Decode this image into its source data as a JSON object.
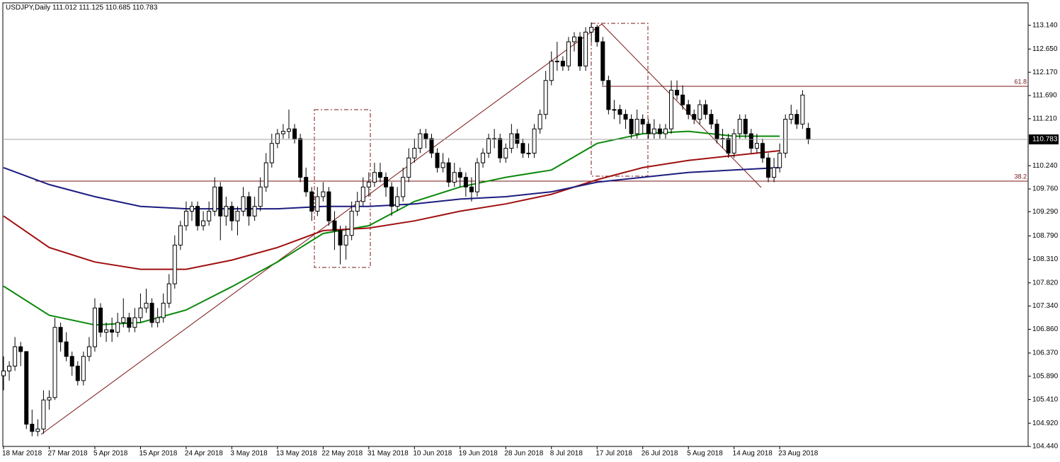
{
  "chart_data": {
    "type": "candlestick",
    "title": "USDJPY,Daily  111.012 111.125 110.685 110.783",
    "categories": [
      "18 Mar 2018",
      null,
      null,
      null,
      null,
      null,
      null,
      null,
      "27 Mar 2018",
      null,
      null,
      null,
      null,
      null,
      null,
      null,
      "5 Apr 2018",
      null,
      null,
      null,
      null,
      null,
      null,
      null,
      "15 Apr 2018",
      null,
      null,
      null,
      null,
      null,
      null,
      null,
      "24 Apr 2018",
      null,
      null,
      null,
      null,
      null,
      null,
      null,
      "3 May 2018",
      null,
      null,
      null,
      null,
      null,
      null,
      null,
      "13 May 2018",
      null,
      null,
      null,
      null,
      null,
      null,
      null,
      "22 May 2018",
      null,
      null,
      null,
      null,
      null,
      null,
      null,
      "31 May 2018",
      null,
      null,
      null,
      null,
      null,
      null,
      null,
      "10 Jun 2018",
      null,
      null,
      null,
      null,
      null,
      null,
      null,
      "19 Jun 2018",
      null,
      null,
      null,
      null,
      null,
      null,
      null,
      "28 Jun 2018",
      null,
      null,
      null,
      null,
      null,
      null,
      null,
      "8 Jul 2018",
      null,
      null,
      null,
      null,
      null,
      null,
      null,
      "17 Jul 2018",
      null,
      null,
      null,
      null,
      null,
      null,
      null,
      "26 Jul 2018",
      null,
      null,
      null,
      null,
      null,
      null,
      null,
      "5 Aug 2018",
      null,
      null,
      null,
      null,
      null,
      null,
      null,
      "14 Aug 2018",
      null,
      null,
      null,
      null,
      null,
      null,
      null,
      "23 Aug 2018",
      null,
      null,
      null,
      null,
      null
    ],
    "ohlc": [
      [
        105.9,
        106.3,
        105.6,
        106.0
      ],
      [
        106.0,
        106.2,
        105.8,
        106.1
      ],
      [
        106.1,
        106.7,
        106.0,
        106.5
      ],
      [
        106.5,
        106.6,
        106.1,
        106.4
      ],
      [
        106.4,
        106.4,
        104.8,
        104.9
      ],
      [
        104.9,
        105.2,
        104.65,
        104.75
      ],
      [
        104.75,
        105.0,
        104.65,
        104.8
      ],
      [
        104.8,
        105.6,
        104.7,
        105.4
      ],
      [
        105.4,
        105.6,
        105.2,
        105.45
      ],
      [
        105.45,
        107.1,
        105.4,
        106.9
      ],
      [
        106.9,
        107.0,
        106.4,
        106.6
      ],
      [
        106.6,
        106.8,
        106.2,
        106.3
      ],
      [
        106.3,
        106.4,
        105.9,
        106.1
      ],
      [
        106.1,
        106.2,
        105.7,
        105.8
      ],
      [
        105.8,
        106.4,
        105.7,
        106.3
      ],
      [
        106.3,
        106.7,
        106.2,
        106.5
      ],
      [
        106.5,
        107.5,
        106.4,
        107.3
      ],
      [
        107.3,
        107.4,
        106.7,
        106.8
      ],
      [
        106.8,
        107.0,
        106.6,
        106.85
      ],
      [
        106.85,
        107.1,
        106.6,
        106.8
      ],
      [
        106.8,
        107.2,
        106.7,
        107.0
      ],
      [
        107.0,
        107.5,
        106.9,
        107.1
      ],
      [
        107.1,
        107.2,
        106.8,
        106.9
      ],
      [
        106.9,
        107.3,
        106.8,
        107.1
      ],
      [
        107.1,
        107.6,
        107.0,
        107.3
      ],
      [
        107.3,
        107.7,
        107.2,
        107.4
      ],
      [
        107.4,
        107.5,
        106.9,
        107.0
      ],
      [
        107.0,
        107.3,
        106.9,
        107.1
      ],
      [
        107.1,
        107.6,
        107.0,
        107.4
      ],
      [
        107.4,
        108.0,
        107.3,
        107.8
      ],
      [
        107.8,
        108.8,
        107.7,
        108.6
      ],
      [
        108.6,
        109.1,
        108.5,
        109.0
      ],
      [
        109.0,
        109.5,
        108.9,
        109.3
      ],
      [
        109.3,
        109.5,
        109.1,
        109.4
      ],
      [
        109.4,
        109.5,
        108.9,
        109.0
      ],
      [
        109.0,
        109.3,
        108.9,
        109.1
      ],
      [
        109.1,
        109.5,
        109.0,
        109.3
      ],
      [
        109.3,
        110.0,
        109.2,
        109.8
      ],
      [
        109.8,
        109.9,
        108.7,
        109.2
      ],
      [
        109.2,
        109.6,
        109.0,
        109.4
      ],
      [
        109.4,
        109.5,
        108.9,
        109.1
      ],
      [
        109.1,
        109.4,
        108.8,
        109.3
      ],
      [
        109.3,
        109.8,
        109.2,
        109.6
      ],
      [
        109.6,
        109.7,
        109.0,
        109.2
      ],
      [
        109.2,
        109.6,
        109.1,
        109.4
      ],
      [
        109.4,
        110.0,
        109.3,
        109.8
      ],
      [
        109.8,
        110.5,
        109.7,
        110.3
      ],
      [
        110.3,
        110.9,
        110.2,
        110.7
      ],
      [
        110.7,
        111.0,
        110.6,
        110.9
      ],
      [
        110.9,
        111.1,
        110.8,
        110.95
      ],
      [
        110.95,
        111.4,
        110.8,
        111.0
      ],
      [
        111.0,
        111.1,
        110.7,
        110.8
      ],
      [
        110.8,
        110.9,
        109.9,
        110.0
      ],
      [
        110.0,
        110.2,
        109.6,
        109.7
      ],
      [
        109.7,
        109.8,
        109.1,
        109.3
      ],
      [
        109.3,
        109.8,
        109.2,
        109.6
      ],
      [
        109.6,
        109.9,
        109.5,
        109.7
      ],
      [
        109.7,
        109.8,
        109.0,
        109.1
      ],
      [
        109.1,
        109.3,
        108.5,
        108.9
      ],
      [
        108.9,
        109.0,
        108.2,
        108.6
      ],
      [
        108.6,
        109.0,
        108.3,
        108.8
      ],
      [
        108.8,
        109.5,
        108.7,
        109.3
      ],
      [
        109.3,
        109.7,
        109.2,
        109.5
      ],
      [
        109.5,
        110.0,
        109.4,
        109.8
      ],
      [
        109.8,
        110.1,
        109.6,
        109.9
      ],
      [
        109.9,
        110.3,
        109.8,
        110.1
      ],
      [
        110.1,
        110.3,
        109.9,
        110.0
      ],
      [
        110.0,
        110.1,
        109.6,
        109.8
      ],
      [
        109.8,
        109.9,
        109.2,
        109.4
      ],
      [
        109.4,
        109.8,
        109.3,
        109.6
      ],
      [
        109.6,
        110.2,
        109.5,
        110.0
      ],
      [
        110.0,
        110.6,
        109.9,
        110.4
      ],
      [
        110.4,
        110.8,
        110.3,
        110.6
      ],
      [
        110.6,
        111.0,
        110.5,
        110.9
      ],
      [
        110.9,
        111.0,
        110.6,
        110.8
      ],
      [
        110.8,
        110.9,
        110.4,
        110.5
      ],
      [
        110.5,
        110.6,
        110.1,
        110.2
      ],
      [
        110.2,
        110.5,
        110.1,
        110.3
      ],
      [
        110.3,
        110.4,
        109.8,
        109.9
      ],
      [
        109.9,
        110.3,
        109.8,
        110.1
      ],
      [
        110.1,
        110.2,
        109.8,
        110.0
      ],
      [
        110.0,
        110.1,
        109.6,
        109.8
      ],
      [
        109.8,
        110.0,
        109.5,
        109.7
      ],
      [
        109.7,
        110.4,
        109.6,
        110.3
      ],
      [
        110.3,
        110.6,
        110.2,
        110.5
      ],
      [
        110.5,
        110.9,
        110.4,
        110.8
      ],
      [
        110.8,
        111.0,
        110.6,
        110.8
      ],
      [
        110.8,
        110.9,
        110.3,
        110.4
      ],
      [
        110.4,
        110.7,
        110.3,
        110.6
      ],
      [
        110.6,
        111.1,
        110.5,
        110.9
      ],
      [
        110.9,
        111.0,
        110.6,
        110.7
      ],
      [
        110.7,
        110.8,
        110.4,
        110.5
      ],
      [
        110.5,
        110.7,
        110.4,
        110.5
      ],
      [
        110.5,
        111.1,
        110.4,
        111.0
      ],
      [
        111.0,
        111.4,
        110.9,
        111.3
      ],
      [
        111.3,
        112.2,
        111.2,
        112.0
      ],
      [
        112.0,
        112.6,
        111.9,
        112.4
      ],
      [
        112.4,
        112.8,
        112.2,
        112.4
      ],
      [
        112.4,
        112.5,
        112.2,
        112.3
      ],
      [
        112.3,
        112.9,
        112.2,
        112.8
      ],
      [
        112.8,
        113.0,
        112.6,
        112.9
      ],
      [
        112.9,
        113.0,
        112.2,
        112.3
      ],
      [
        112.3,
        113.1,
        112.2,
        113.0
      ],
      [
        113.0,
        113.2,
        112.8,
        113.1
      ],
      [
        113.1,
        113.15,
        112.7,
        112.8
      ],
      [
        112.8,
        112.9,
        111.9,
        112.0
      ],
      [
        112.0,
        112.1,
        111.3,
        111.4
      ],
      [
        111.4,
        111.6,
        111.2,
        111.4
      ],
      [
        111.4,
        111.5,
        111.1,
        111.3
      ],
      [
        111.3,
        111.4,
        111.0,
        111.2
      ],
      [
        111.2,
        111.3,
        110.8,
        110.9
      ],
      [
        110.9,
        111.4,
        110.8,
        111.2
      ],
      [
        111.2,
        111.3,
        110.9,
        111.1
      ],
      [
        111.1,
        111.2,
        110.8,
        110.9
      ],
      [
        110.9,
        111.2,
        110.8,
        111.0
      ],
      [
        111.0,
        111.1,
        110.8,
        110.9
      ],
      [
        110.9,
        111.1,
        110.8,
        111.0
      ],
      [
        111.0,
        112.0,
        110.9,
        111.8
      ],
      [
        111.8,
        112.0,
        111.6,
        111.7
      ],
      [
        111.7,
        111.9,
        111.4,
        111.5
      ],
      [
        111.5,
        111.6,
        111.2,
        111.3
      ],
      [
        111.3,
        111.4,
        111.1,
        111.2
      ],
      [
        111.2,
        111.6,
        111.1,
        111.5
      ],
      [
        111.5,
        111.6,
        111.2,
        111.3
      ],
      [
        111.3,
        111.4,
        111.0,
        111.1
      ],
      [
        111.1,
        111.2,
        110.7,
        110.8
      ],
      [
        110.8,
        111.0,
        110.6,
        110.8
      ],
      [
        110.8,
        110.9,
        110.4,
        110.5
      ],
      [
        110.5,
        111.0,
        110.4,
        110.9
      ],
      [
        110.9,
        111.3,
        110.8,
        111.2
      ],
      [
        111.2,
        111.3,
        110.8,
        110.9
      ],
      [
        110.9,
        111.0,
        110.5,
        110.6
      ],
      [
        110.6,
        110.9,
        110.5,
        110.7
      ],
      [
        110.7,
        110.8,
        110.3,
        110.4
      ],
      [
        110.4,
        110.5,
        109.9,
        110.0
      ],
      [
        110.0,
        110.4,
        109.9,
        110.2
      ],
      [
        110.2,
        110.7,
        110.1,
        110.5
      ],
      [
        110.5,
        111.3,
        110.4,
        111.2
      ],
      [
        111.2,
        111.5,
        111.1,
        111.3
      ],
      [
        111.3,
        111.4,
        111.0,
        111.1
      ],
      [
        111.1,
        111.8,
        111.0,
        111.7
      ],
      [
        111.012,
        111.125,
        110.685,
        110.783
      ]
    ],
    "series": [
      {
        "color": "#0a8a0a",
        "x": [
          "18 Mar 2018",
          "27 Mar 2018",
          "5 Apr 2018",
          "15 Apr 2018",
          "24 Apr 2018",
          "3 May 2018",
          "13 May 2018",
          "22 May 2018",
          "31 May 2018",
          "10 Jun 2018",
          "19 Jun 2018",
          "28 Jun 2018",
          "8 Jul 2018",
          "17 Jul 2018",
          "26 Jul 2018",
          "5 Aug 2018",
          "14 Aug 2018",
          "23 Aug 2018"
        ],
        "values": [
          107.75,
          107.15,
          106.95,
          107.0,
          107.26,
          107.74,
          108.25,
          108.84,
          109.0,
          109.5,
          109.8,
          110.0,
          110.15,
          110.7,
          110.9,
          110.95,
          110.85,
          110.85
        ]
      },
      {
        "color": "#a01010",
        "x": [
          "18 Mar 2018",
          "27 Mar 2018",
          "5 Apr 2018",
          "15 Apr 2018",
          "24 Apr 2018",
          "3 May 2018",
          "13 May 2018",
          "22 May 2018",
          "31 May 2018",
          "10 Jun 2018",
          "19 Jun 2018",
          "28 Jun 2018",
          "8 Jul 2018",
          "17 Jul 2018",
          "26 Jul 2018",
          "5 Aug 2018",
          "14 Aug 2018",
          "23 Aug 2018"
        ],
        "values": [
          109.2,
          108.55,
          108.25,
          108.1,
          108.1,
          108.29,
          108.55,
          108.9,
          108.95,
          109.1,
          109.3,
          109.45,
          109.65,
          109.95,
          110.2,
          110.35,
          110.45,
          110.55
        ]
      },
      {
        "color": "#1c1c80",
        "x": [
          "18 Mar 2018",
          "27 Mar 2018",
          "5 Apr 2018",
          "15 Apr 2018",
          "24 Apr 2018",
          "3 May 2018",
          "13 May 2018",
          "22 May 2018",
          "31 May 2018",
          "10 Jun 2018",
          "19 Jun 2018",
          "28 Jun 2018",
          "8 Jul 2018",
          "17 Jul 2018",
          "26 Jul 2018",
          "5 Aug 2018",
          "14 Aug 2018",
          "23 Aug 2018"
        ],
        "values": [
          110.2,
          109.85,
          109.6,
          109.4,
          109.35,
          109.35,
          109.35,
          109.4,
          109.4,
          109.45,
          109.55,
          109.6,
          109.7,
          109.9,
          110.0,
          110.1,
          110.15,
          110.2
        ]
      }
    ],
    "fib_levels": [
      "61.8",
      "38.2"
    ],
    "ylim": [
      104.44,
      113.59
    ],
    "yticks": [
      {
        "value": 113.14,
        "label": "113.140"
      },
      {
        "value": 112.65,
        "label": "112.650"
      },
      {
        "value": 112.17,
        "label": "112.170"
      },
      {
        "value": 111.69,
        "label": "111.690"
      },
      {
        "value": 111.21,
        "label": "111.210"
      },
      {
        "value": 110.24,
        "label": "110.240"
      },
      {
        "value": 109.76,
        "label": "109.760"
      },
      {
        "value": 109.29,
        "label": "109.290"
      },
      {
        "value": 108.79,
        "label": "108.790"
      },
      {
        "value": 108.31,
        "label": "108.310"
      },
      {
        "value": 107.82,
        "label": "107.820"
      },
      {
        "value": 107.34,
        "label": "107.340"
      },
      {
        "value": 106.86,
        "label": "106.860"
      },
      {
        "value": 106.37,
        "label": "106.370"
      },
      {
        "value": 105.89,
        "label": "105.890"
      },
      {
        "value": 105.41,
        "label": "105.410"
      },
      {
        "value": 104.92,
        "label": "104.920"
      },
      {
        "value": 104.44,
        "label": "104.440"
      }
    ],
    "bull_color": "#ffffff",
    "bear_color": "#000000"
  }
}
